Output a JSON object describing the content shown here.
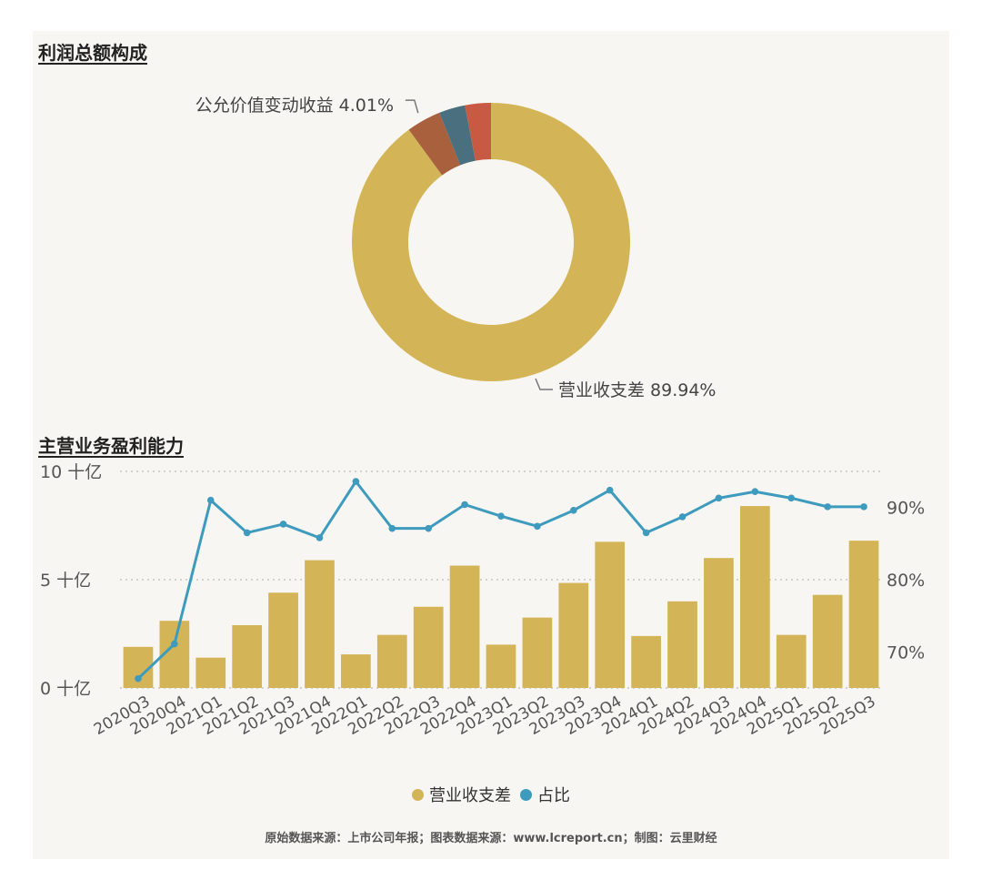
{
  "section1_title": "利润总额构成",
  "section2_title": "主营业务盈利能力",
  "footer": "原始数据来源：上市公司年报；图表数据来源：www.lcreport.cn；制图：云里财经",
  "colors": {
    "gold": "#d3b558",
    "blue": "#3e9bbd",
    "brown": "#a8603d",
    "teal": "#4a6f7f",
    "red": "#c85a43"
  },
  "chart_data": [
    {
      "type": "pie",
      "style": "donut",
      "title": "利润总额构成",
      "slices": [
        {
          "label": "营业收支差",
          "value": 89.94,
          "color": "#d3b558",
          "callout": "营业收支差 89.94%"
        },
        {
          "label": "公允价值变动收益",
          "value": 4.01,
          "color": "#a8603d",
          "callout": "公允价值变动收益 4.01%"
        },
        {
          "label": "",
          "value": 3.05,
          "color": "#4a6f7f"
        },
        {
          "label": "",
          "value": 3.0,
          "color": "#c85a43"
        }
      ]
    },
    {
      "type": "bar",
      "title": "主营业务盈利能力",
      "categories": [
        "2020Q3",
        "2020Q4",
        "2021Q1",
        "2021Q2",
        "2021Q3",
        "2021Q4",
        "2022Q1",
        "2022Q2",
        "2022Q3",
        "2022Q4",
        "2023Q1",
        "2023Q2",
        "2023Q3",
        "2023Q4",
        "2024Q1",
        "2024Q2",
        "2024Q3",
        "2024Q4",
        "2025Q1",
        "2025Q2",
        "2025Q3"
      ],
      "series": [
        {
          "name": "营业收支差",
          "type": "bar",
          "axis": "left",
          "color": "#d3b558",
          "values": [
            1.9,
            3.1,
            1.4,
            2.9,
            4.4,
            5.9,
            1.55,
            2.45,
            3.75,
            5.65,
            2.0,
            3.25,
            4.85,
            6.75,
            2.4,
            4.0,
            6.0,
            8.4,
            2.45,
            4.3,
            6.8
          ]
        },
        {
          "name": "占比",
          "type": "line",
          "axis": "right",
          "color": "#3e9bbd",
          "values": [
            66.3,
            71.1,
            91.0,
            86.5,
            87.7,
            85.8,
            93.6,
            87.1,
            87.1,
            90.4,
            88.8,
            87.4,
            89.6,
            92.4,
            86.5,
            88.7,
            91.3,
            92.2,
            91.3,
            90.1,
            90.1
          ]
        }
      ],
      "left_axis": {
        "ticks": [
          "10 十亿",
          "5 十亿",
          "0 十亿"
        ],
        "range": [
          0,
          10
        ]
      },
      "right_axis": {
        "ticks": [
          "90%",
          "80%",
          "70%"
        ],
        "range": [
          65,
          95
        ]
      },
      "grid": true,
      "legend": {
        "position": "bottom",
        "items": [
          "营业收支差",
          "占比"
        ]
      }
    }
  ]
}
